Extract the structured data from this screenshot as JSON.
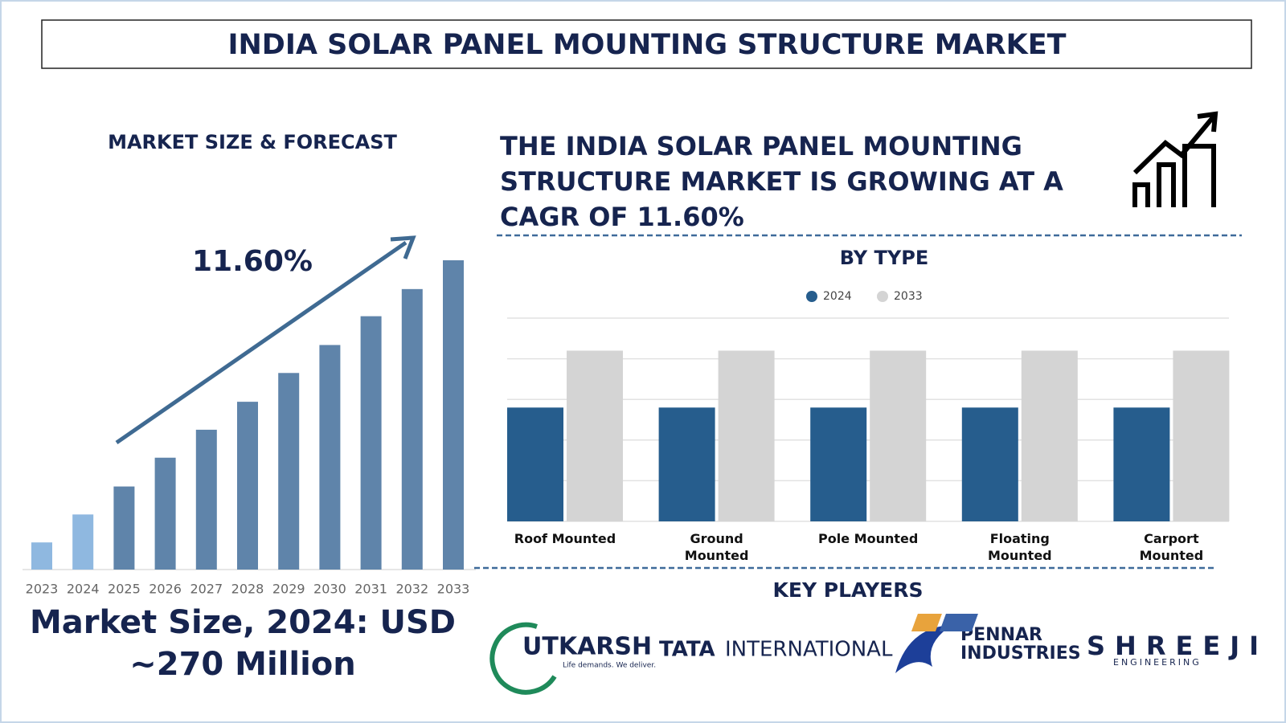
{
  "title": "INDIA SOLAR PANEL MOUNTING STRUCTURE MARKET",
  "headline": [
    "THE INDIA SOLAR PANEL MOUNTING",
    "STRUCTURE MARKET IS GROWING AT A",
    "CAGR OF 11.60%"
  ],
  "market_size": [
    "Market Size, 2024: USD",
    "~270 Million"
  ],
  "chart_data": [
    {
      "type": "bar",
      "title": "MARKET SIZE & FORECAST",
      "annotation": "11.60%",
      "categories": [
        "2023",
        "2024",
        "2025",
        "2026",
        "2027",
        "2028",
        "2029",
        "2030",
        "2031",
        "2032",
        "2033"
      ],
      "values": [
        33,
        67,
        101,
        136,
        170,
        204,
        239,
        273,
        308,
        341,
        376
      ],
      "colors": [
        "#8fb8e0",
        "#8fb8e0",
        "#5f84aa",
        "#5f84aa",
        "#5f84aa",
        "#5f84aa",
        "#5f84aa",
        "#5f84aa",
        "#5f84aa",
        "#5f84aa",
        "#5f84aa"
      ]
    },
    {
      "type": "grouped_bar",
      "title": "BY TYPE",
      "categories": [
        "Roof Mounted",
        "Ground Mounted",
        "Pole Mounted",
        "Floating Mounted",
        "Carport Mounted"
      ],
      "series": [
        {
          "name": "2024",
          "color": "#265d8d",
          "values": [
            2.8,
            2.8,
            2.8,
            2.8,
            2.8
          ]
        },
        {
          "name": "2033",
          "color": "#d4d4d4",
          "values": [
            4.2,
            4.2,
            4.2,
            4.2,
            4.2
          ]
        }
      ],
      "ylim": [
        0,
        5
      ],
      "yticks": [
        0,
        1,
        2,
        3,
        4,
        5
      ],
      "grid": true
    }
  ],
  "key_players": {
    "title": "KEY PLAYERS",
    "logos": [
      [
        "UTKARSH",
        "Life demands. We deliver."
      ],
      [
        "TATA",
        "INTERNATIONAL"
      ],
      [
        "PENNAR",
        "INDUSTRIES"
      ],
      [
        "SHREEJI",
        "ENGINEERING"
      ]
    ]
  }
}
